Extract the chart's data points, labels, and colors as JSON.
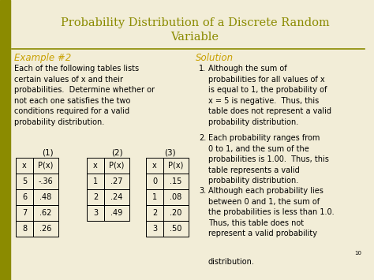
{
  "title_line1": "Probability Distribution of a Discrete Random",
  "title_line2": "Variable",
  "title_color": "#8B8B00",
  "bg_color": "#F2EDD7",
  "left_bar_color": "#8B8B00",
  "example_label": "Example #2",
  "example_color": "#C8A000",
  "example_text": "Each of the following tables lists\ncertain values of x and their\nprobabilities.  Determine whether or\nnot each one satisfies the two\nconditions required for a valid\nprobability distribution.",
  "solution_label": "Solution",
  "solution_color": "#C8A000",
  "sol1": "Although the sum of\nprobabilities for all values of x\nis equal to 1, the probability of\nx = 5 is negative.  Thus, this\ntable does not represent a valid\nprobability distribution.",
  "sol2": "Each probability ranges from\n0 to 1, and the sum of the\nprobabilities is 1.00.  Thus, this\ntable represents a valid\nprobability distribution.",
  "sol3a": "Although each probability lies\nbetween 0 and 1, the sum of\nthe probabilities is less than 1.0.\nThus, this table does not\nrepresent a valid probability",
  "sol3b": "distribution.",
  "table1_label": "(1)",
  "table2_label": "(2)",
  "table3_label": "(3)",
  "table1_headers": [
    "x",
    "P(x)"
  ],
  "table1_data": [
    [
      "5",
      "-.36"
    ],
    [
      "6",
      ".48"
    ],
    [
      "7",
      ".62"
    ],
    [
      "8",
      ".26"
    ]
  ],
  "table2_headers": [
    "x",
    "P(x)"
  ],
  "table2_data": [
    [
      "1",
      ".27"
    ],
    [
      "2",
      ".24"
    ],
    [
      "3",
      ".49"
    ]
  ],
  "table3_headers": [
    "x",
    "P(x)"
  ],
  "table3_data": [
    [
      "0",
      ".15"
    ],
    [
      "1",
      ".08"
    ],
    [
      "2",
      ".20"
    ],
    [
      "3",
      ".50"
    ]
  ],
  "divider_color": "#8B8B00",
  "text_color": "#000000"
}
